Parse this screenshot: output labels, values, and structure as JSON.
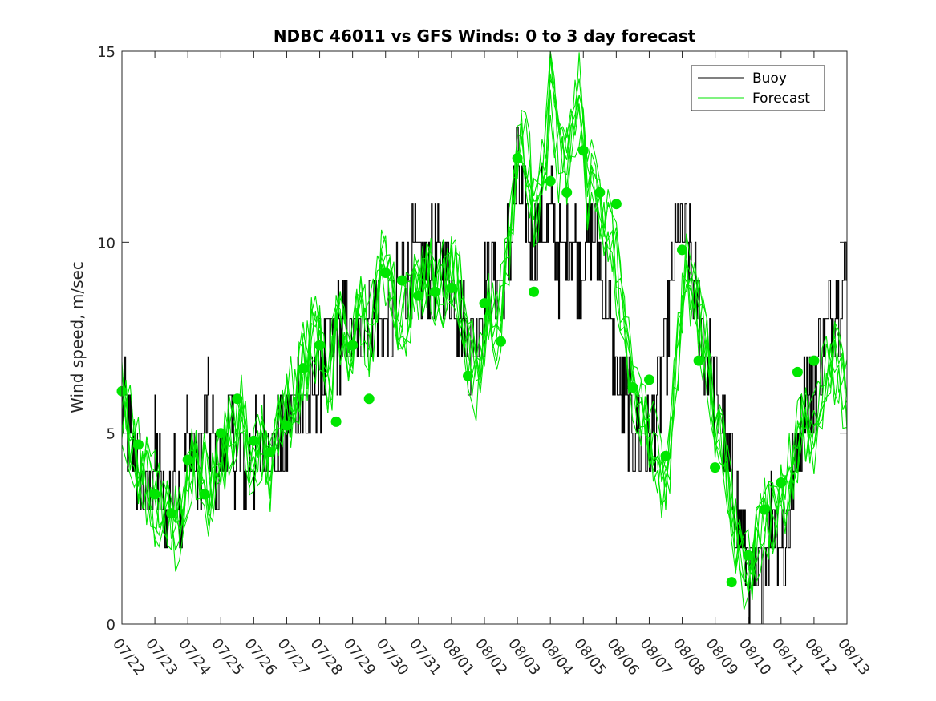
{
  "chart_data": {
    "type": "line",
    "title": "NDBC 46011 vs GFS Winds: 0 to 3 day forecast",
    "xlabel": "",
    "ylabel": "Wind speed, m/sec",
    "ylim": [
      0,
      15
    ],
    "yticks": [
      0,
      5,
      10,
      15
    ],
    "xlim": [
      0,
      22
    ],
    "xtick_labels": [
      "07/22",
      "07/23",
      "07/24",
      "07/25",
      "07/26",
      "07/27",
      "07/28",
      "07/29",
      "07/30",
      "07/31",
      "08/01",
      "08/02",
      "08/03",
      "08/04",
      "08/05",
      "08/06",
      "08/07",
      "08/08",
      "08/09",
      "08/10",
      "08/11",
      "08/12",
      "08/13"
    ],
    "legend": {
      "position": "top-right",
      "entries": [
        "Buoy",
        "Forecast"
      ]
    },
    "colors": {
      "buoy": "#000000",
      "forecast": "#00e600",
      "axis": "#262626"
    },
    "buoy_anchor": {
      "x": [
        0,
        0.2,
        0.5,
        0.8,
        1.0,
        1.3,
        1.6,
        1.8,
        2.0,
        2.3,
        2.6,
        2.9,
        3.2,
        3.5,
        3.8,
        4.1,
        4.4,
        4.7,
        5.0,
        5.3,
        5.6,
        5.9,
        6.2,
        6.5,
        6.8,
        7.0,
        7.3,
        7.6,
        7.9,
        8.2,
        8.5,
        8.8,
        9.1,
        9.4,
        9.7,
        10.0,
        10.3,
        10.6,
        10.9,
        11.2,
        11.5,
        11.8,
        12.0,
        12.2,
        12.4,
        12.7,
        13.0,
        13.3,
        13.6,
        13.9,
        14.2,
        14.5,
        14.8,
        15.1,
        15.4,
        15.7,
        16.0,
        16.3,
        16.6,
        16.9,
        17.2,
        17.5,
        17.8,
        18.1,
        18.4,
        18.7,
        19.0,
        19.2,
        19.5,
        19.8,
        20.1,
        20.4,
        20.7,
        21.0,
        21.3,
        21.6,
        22.0
      ],
      "y": [
        6.0,
        5.0,
        4.0,
        3.0,
        4.5,
        2.5,
        4.0,
        3.0,
        5.0,
        4.0,
        5.5,
        4.0,
        5.0,
        4.5,
        4.0,
        4.5,
        5.0,
        4.5,
        5.0,
        6.0,
        5.5,
        6.5,
        7.0,
        7.5,
        8.0,
        7.0,
        8.0,
        8.5,
        7.5,
        8.0,
        9.0,
        9.5,
        9.0,
        9.5,
        9.5,
        9.0,
        8.0,
        7.0,
        8.5,
        9.0,
        9.0,
        10.0,
        12.0,
        11.0,
        10.0,
        10.5,
        10.5,
        9.5,
        10.0,
        9.5,
        10.5,
        9.5,
        8.0,
        6.0,
        5.5,
        5.0,
        4.5,
        6.0,
        8.0,
        10.5,
        9.5,
        8.0,
        7.0,
        5.5,
        4.0,
        3.0,
        1.5,
        0.5,
        2.0,
        3.0,
        2.0,
        4.0,
        6.0,
        6.5,
        7.5,
        8.5,
        9.0
      ]
    },
    "forecast_markers": {
      "x": [
        0,
        0.5,
        1.0,
        1.5,
        2.0,
        2.5,
        3.0,
        3.5,
        4.0,
        4.5,
        5.0,
        5.5,
        6.0,
        6.5,
        7.0,
        7.5,
        8.0,
        8.5,
        9.0,
        9.5,
        10.0,
        10.5,
        11.0,
        11.5,
        12.0,
        12.5,
        13.0,
        13.5,
        14.0,
        14.5,
        15.0,
        15.5,
        16.0,
        16.5,
        17.0,
        17.5,
        18.0,
        18.5,
        19.0,
        19.5,
        20.0,
        20.5,
        21.0
      ],
      "y": [
        6.1,
        4.7,
        3.4,
        2.9,
        4.3,
        3.4,
        5.0,
        5.9,
        4.8,
        4.5,
        5.2,
        6.7,
        7.3,
        5.3,
        7.3,
        5.9,
        9.2,
        9.0,
        8.6,
        8.7,
        8.8,
        6.5,
        8.4,
        7.4,
        12.2,
        8.7,
        11.6,
        11.3,
        12.4,
        11.3,
        11.0,
        6.2,
        6.4,
        4.4,
        9.8,
        6.9,
        4.1,
        1.1,
        1.8,
        3.0,
        3.7,
        6.6,
        6.9
      ]
    },
    "forecast_anchor": {
      "x": [
        0,
        0.3,
        0.6,
        0.9,
        1.2,
        1.5,
        1.8,
        2.1,
        2.4,
        2.7,
        3.0,
        3.3,
        3.6,
        3.9,
        4.2,
        4.5,
        4.8,
        5.1,
        5.4,
        5.7,
        6.0,
        6.3,
        6.6,
        6.9,
        7.2,
        7.5,
        7.8,
        8.1,
        8.4,
        8.7,
        9.0,
        9.3,
        9.6,
        9.9,
        10.2,
        10.5,
        10.8,
        11.1,
        11.4,
        11.7,
        12.0,
        12.2,
        12.5,
        12.8,
        13.0,
        13.3,
        13.6,
        13.9,
        14.1,
        14.4,
        14.7,
        15.0,
        15.3,
        15.6,
        15.9,
        16.2,
        16.5,
        16.8,
        17.1,
        17.4,
        17.7,
        18.0,
        18.3,
        18.6,
        18.9,
        19.2,
        19.5,
        19.8,
        20.1,
        20.4,
        20.7,
        21.0,
        21.3,
        21.6,
        22.0
      ],
      "y": [
        6.0,
        5.0,
        4.0,
        3.5,
        3.2,
        3.0,
        2.5,
        4.5,
        4.0,
        3.5,
        4.5,
        5.0,
        5.5,
        4.5,
        4.8,
        4.2,
        5.5,
        6.0,
        6.5,
        7.5,
        7.5,
        6.5,
        8.0,
        7.0,
        8.5,
        7.5,
        9.0,
        9.5,
        8.0,
        8.5,
        9.0,
        9.5,
        8.5,
        9.5,
        9.0,
        7.5,
        6.5,
        8.5,
        8.0,
        9.5,
        12.5,
        13.0,
        11.0,
        12.0,
        14.0,
        12.0,
        12.5,
        14.0,
        11.5,
        11.5,
        10.5,
        9.5,
        7.5,
        6.0,
        5.5,
        4.5,
        3.5,
        6.5,
        9.5,
        8.5,
        7.5,
        5.5,
        4.5,
        2.5,
        1.5,
        2.0,
        3.0,
        2.8,
        3.5,
        4.5,
        5.5,
        5.0,
        6.5,
        7.0,
        6.0
      ]
    }
  }
}
